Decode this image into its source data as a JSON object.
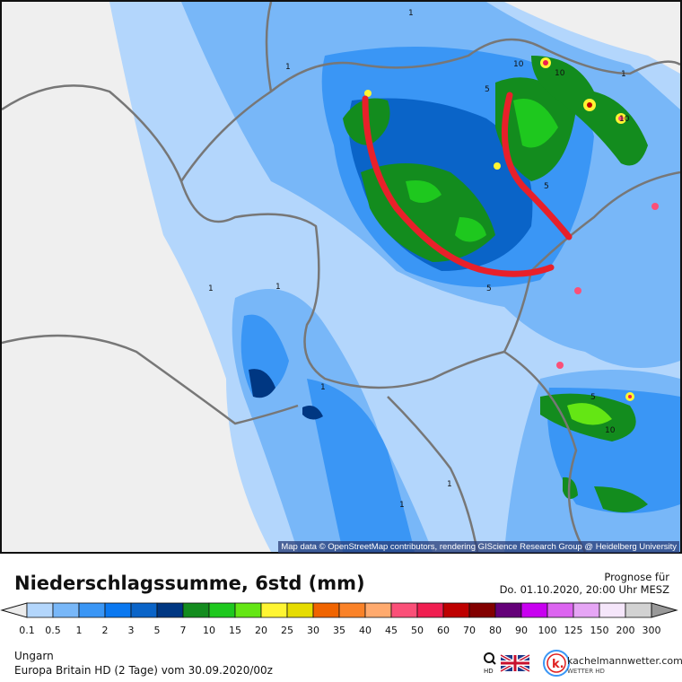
{
  "map": {
    "attribution": "Map data © OpenStreetMap contributors, rendering GIScience Research Group @ Heidelberg University",
    "contour_labels": [
      "1",
      "1",
      "1",
      "1",
      "1",
      "1",
      "1",
      "1",
      "5",
      "5",
      "5",
      "5",
      "10",
      "10",
      "10",
      "10"
    ],
    "annotation_color": "#e8202a"
  },
  "header": {
    "title": "Niederschlagssumme, 6std (mm)",
    "forecast_label": "Prognose für",
    "forecast_time": "Do. 01.10.2020, 20:00 Uhr MESZ"
  },
  "legend": {
    "ticks": [
      "0.1",
      "0.5",
      "1",
      "2",
      "3",
      "5",
      "7",
      "10",
      "15",
      "20",
      "25",
      "30",
      "35",
      "40",
      "45",
      "50",
      "60",
      "70",
      "80",
      "90",
      "100",
      "125",
      "150",
      "200",
      "300"
    ],
    "colors": [
      "#b3d6fc",
      "#78b7f8",
      "#3a96f5",
      "#0a78f0",
      "#0a64c8",
      "#003782",
      "#138c1e",
      "#1ec81e",
      "#64e614",
      "#fff532",
      "#e6dc00",
      "#f06400",
      "#fa8228",
      "#ffaa6e",
      "#fa5078",
      "#f01e50",
      "#be0000",
      "#820000",
      "#640078",
      "#c800f0",
      "#dc64f0",
      "#e6a5f5",
      "#f5e6fa",
      "#d2d2d2"
    ],
    "under_color": "#ececec",
    "over_color": "#999999"
  },
  "footer": {
    "region": "Ungarn",
    "model": "Europa Britain HD (2 Tage) vom  30.09.2020/00z",
    "zoom_label": "HD",
    "brand": "kachelmannwetter.com",
    "brand_sub": "WETTER HD"
  }
}
